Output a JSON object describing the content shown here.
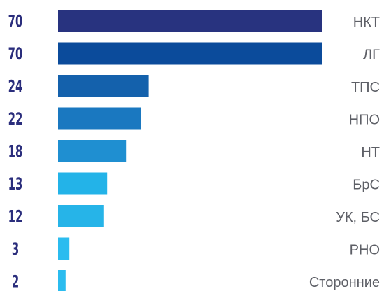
{
  "chart_data": {
    "type": "bar",
    "orientation": "horizontal",
    "categories": [
      "НКТ",
      "ЛГ",
      "ТПС",
      "НПО",
      "НТ",
      "БрС",
      "УК, БС",
      "РНО",
      "Сторонние"
    ],
    "values": [
      70,
      70,
      24,
      22,
      18,
      13,
      12,
      3,
      2
    ],
    "value_labels": [
      "70",
      "70",
      "24",
      "22",
      "18",
      "13",
      "12",
      "3",
      "2"
    ],
    "colors": [
      "#28337f",
      "#0b4b9b",
      "#1461ac",
      "#1a78c0",
      "#1f8fd1",
      "#23b3e8",
      "#26b4e8",
      "#2bbcef",
      "#2bbcef"
    ],
    "title": "",
    "xlabel": "",
    "ylabel": "",
    "xlim": [
      0,
      70
    ],
    "grid": false,
    "legend": "none"
  }
}
